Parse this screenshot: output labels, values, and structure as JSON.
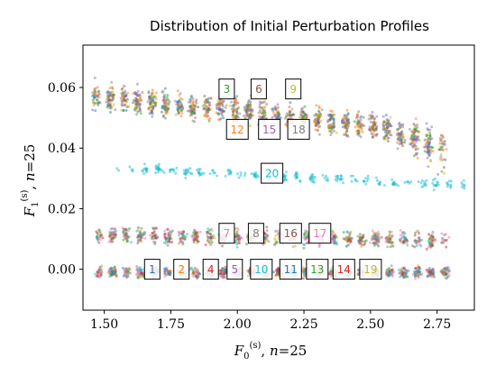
{
  "chart_data": {
    "type": "scatter",
    "title": "Distribution of Initial Perturbation Profiles",
    "xlabel": "F0(s), n=25",
    "ylabel": "F1(s), n=25",
    "xlim": [
      1.42,
      2.89
    ],
    "ylim": [
      -0.0135,
      0.074
    ],
    "xticks": [
      "1.50",
      "1.75",
      "2.00",
      "2.25",
      "2.50",
      "2.75"
    ],
    "xtick_values": [
      1.5,
      1.75,
      2.0,
      2.25,
      2.5,
      2.75
    ],
    "yticks": [
      "0.00",
      "0.02",
      "0.04",
      "0.06"
    ],
    "ytick_values": [
      0.0,
      0.02,
      0.04,
      0.06
    ],
    "grid": false,
    "legend": "none",
    "clusters": [
      {
        "id": "1",
        "label": "1",
        "color": "#1f77b4",
        "x_center": 1.68,
        "y_center": 0.0
      },
      {
        "id": "2",
        "label": "2",
        "color": "#ff7f0e",
        "x_center": 1.79,
        "y_center": 0.0
      },
      {
        "id": "3",
        "label": "3",
        "color": "#2ca02c",
        "x_center": 1.96,
        "y_center": 0.0595
      },
      {
        "id": "4",
        "label": "4",
        "color": "#d62728",
        "x_center": 1.9,
        "y_center": 0.0
      },
      {
        "id": "5",
        "label": "5",
        "color": "#9467bd",
        "x_center": 1.99,
        "y_center": 0.0
      },
      {
        "id": "6",
        "label": "6",
        "color": "#8c564b",
        "x_center": 2.08,
        "y_center": 0.0595
      },
      {
        "id": "7",
        "label": "7",
        "color": "#e377c2",
        "x_center": 1.96,
        "y_center": 0.0119
      },
      {
        "id": "8",
        "label": "8",
        "color": "#7f7f7f",
        "x_center": 2.07,
        "y_center": 0.0119
      },
      {
        "id": "9",
        "label": "9",
        "color": "#bcbd22",
        "x_center": 2.21,
        "y_center": 0.0595
      },
      {
        "id": "10",
        "label": "10",
        "color": "#17becf",
        "x_center": 2.09,
        "y_center": 0.0
      },
      {
        "id": "11",
        "label": "11",
        "color": "#1f77b4",
        "x_center": 2.2,
        "y_center": 0.0
      },
      {
        "id": "12",
        "label": "12",
        "color": "#ff7f0e",
        "x_center": 2.0,
        "y_center": 0.0462
      },
      {
        "id": "13",
        "label": "13",
        "color": "#2ca02c",
        "x_center": 2.3,
        "y_center": 0.0
      },
      {
        "id": "14",
        "label": "14",
        "color": "#d62728",
        "x_center": 2.4,
        "y_center": 0.0
      },
      {
        "id": "15",
        "label": "15",
        "color": "#9467bd",
        "x_center": 2.12,
        "y_center": 0.0462
      },
      {
        "id": "16",
        "label": "16",
        "color": "#8c564b",
        "x_center": 2.2,
        "y_center": 0.0119
      },
      {
        "id": "17",
        "label": "17",
        "color": "#e377c2",
        "x_center": 2.31,
        "y_center": 0.0119
      },
      {
        "id": "18",
        "label": "18",
        "color": "#7f7f7f",
        "x_center": 2.23,
        "y_center": 0.0462
      },
      {
        "id": "19",
        "label": "19",
        "color": "#bcbd22",
        "x_center": 2.5,
        "y_center": 0.0
      },
      {
        "id": "20",
        "label": "20",
        "color": "#17becf",
        "x_center": 2.13,
        "y_center": 0.0317
      }
    ]
  }
}
